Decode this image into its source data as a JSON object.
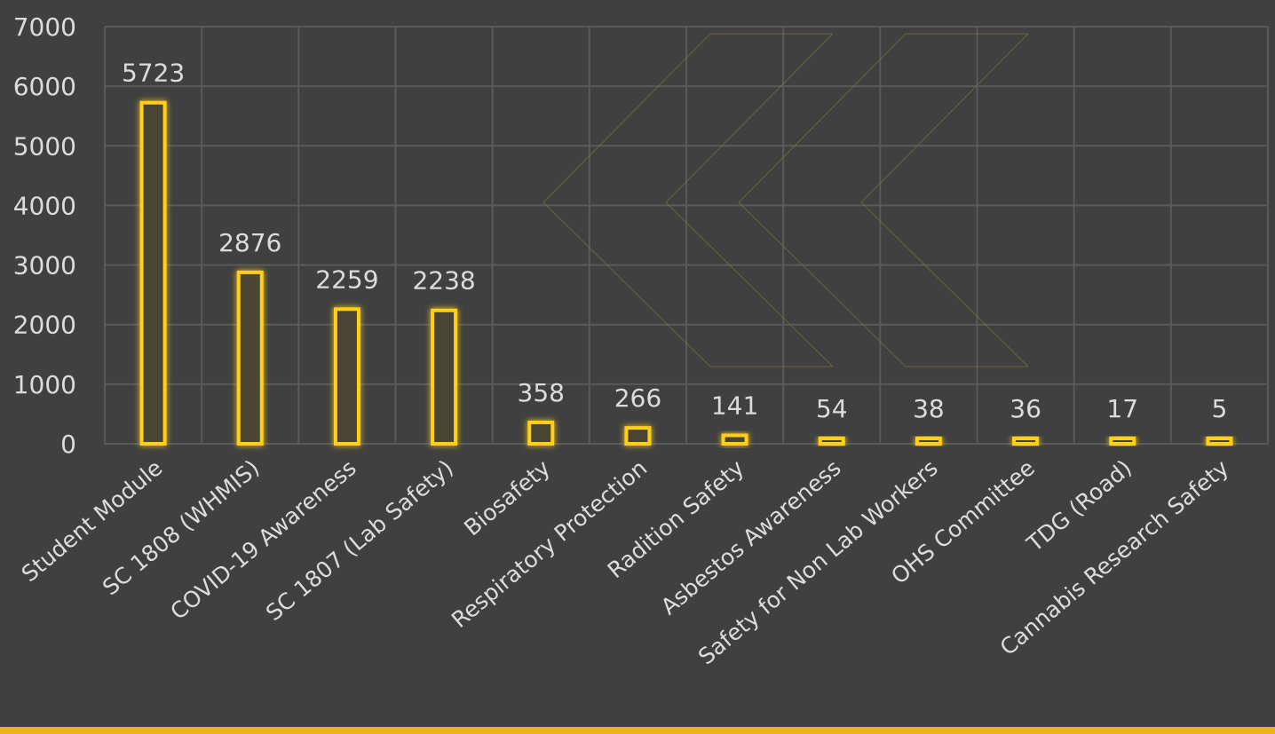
{
  "colors": {
    "background": "#404040",
    "grid": "#5a5a5a",
    "bar_stroke": "#ffcf1c",
    "bar_fill": "#4a4433",
    "text": "#dcdcdc",
    "accent_strip": "#e8b419"
  },
  "chart_data": {
    "type": "bar",
    "categories": [
      "Student Module",
      "SC 1808 (WHMIS)",
      "COVID-19 Awareness",
      "SC 1807 (Lab Safety)",
      "Biosafety",
      "Respiratory Protection",
      "Radition Safety",
      "Asbestos Awareness",
      "Safety for Non Lab Workers",
      "OHS Committee",
      "TDG (Road)",
      "Cannabis Research Safety"
    ],
    "values": [
      5723,
      2876,
      2259,
      2238,
      358,
      266,
      141,
      54,
      38,
      36,
      17,
      5
    ],
    "data_labels": [
      "5723",
      "2876",
      "2259",
      "2238",
      "358",
      "266",
      "141",
      "54",
      "38",
      "36",
      "17",
      "5"
    ],
    "ylim": [
      0,
      7000
    ],
    "yticks": [
      0,
      1000,
      2000,
      3000,
      4000,
      5000,
      6000,
      7000
    ],
    "title": "",
    "xlabel": "",
    "ylabel": "",
    "grid": true,
    "legend": "none"
  }
}
